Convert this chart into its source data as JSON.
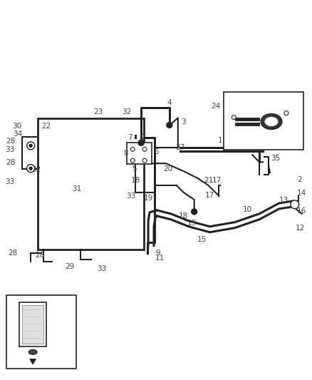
{
  "bg_color": "#ffffff",
  "line_color": "#222222",
  "label_color": "#444444",
  "figsize": [
    4.38,
    5.33
  ],
  "dpi": 100
}
